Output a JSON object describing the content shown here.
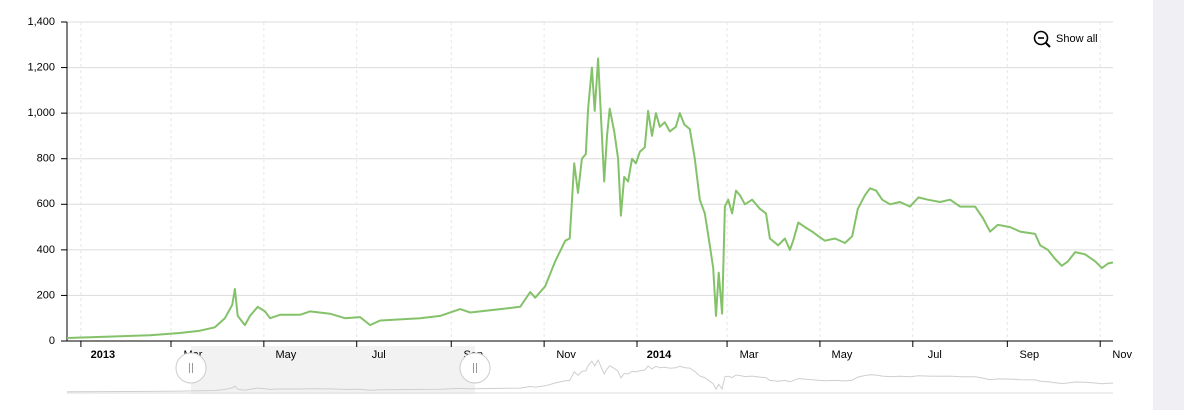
{
  "chart_data": {
    "type": "line",
    "button": "Show all",
    "color": "#84c26a",
    "x": [
      2012.975,
      2013.124,
      2013.178,
      2013.214,
      2013.241,
      2013.259,
      2013.272,
      2013.277,
      2013.282,
      2013.295,
      2013.304,
      2013.318,
      2013.331,
      2013.34,
      2013.358,
      2013.394,
      2013.412,
      2013.448,
      2013.475,
      2013.502,
      2013.52,
      2013.538,
      2013.574,
      2013.61,
      2013.646,
      2013.682,
      2013.7,
      2013.754,
      2013.79,
      2013.808,
      2013.817,
      2013.835,
      2013.853,
      2013.871,
      2013.879,
      2013.887,
      2013.894,
      2013.901,
      2013.908,
      2013.912,
      2013.919,
      2013.924,
      2013.93,
      2013.935,
      2013.941,
      2013.946,
      2013.951,
      2013.959,
      2013.966,
      2013.971,
      2013.977,
      2013.984,
      2013.991,
      2013.998,
      2014.005,
      2014.014,
      2014.02,
      2014.027,
      2014.034,
      2014.041,
      2014.05,
      2014.059,
      2014.07,
      2014.077,
      2014.085,
      2014.095,
      2014.104,
      2014.113,
      2014.122,
      2014.131,
      2014.137,
      2014.142,
      2014.147,
      2014.153,
      2014.158,
      2014.164,
      2014.171,
      2014.178,
      2014.185,
      2014.194,
      2014.207,
      2014.221,
      2014.232,
      2014.239,
      2014.254,
      2014.266,
      2014.275,
      2014.281,
      2014.29,
      2014.302,
      2014.315,
      2014.326,
      2014.338,
      2014.356,
      2014.374,
      2014.387,
      2014.397,
      2014.41,
      2014.419,
      2014.43,
      2014.441,
      2014.455,
      2014.473,
      2014.491,
      2014.506,
      2014.523,
      2014.545,
      2014.563,
      2014.581,
      2014.608,
      2014.622,
      2014.635,
      2014.649,
      2014.671,
      2014.689,
      2014.716,
      2014.725,
      2014.739,
      2014.752,
      2014.764,
      2014.775,
      2014.788,
      2014.806,
      2014.824,
      2014.836,
      2014.847,
      2014.856
    ],
    "values": [
      13,
      25,
      35,
      45,
      60,
      100,
      158,
      228,
      110,
      70,
      110,
      150,
      130,
      100,
      115,
      115,
      130,
      120,
      100,
      105,
      70,
      90,
      95,
      100,
      110,
      140,
      125,
      140,
      150,
      215,
      190,
      240,
      350,
      440,
      450,
      780,
      650,
      800,
      820,
      1020,
      1200,
      1010,
      1240,
      1000,
      700,
      900,
      1020,
      920,
      800,
      550,
      720,
      700,
      800,
      780,
      830,
      850,
      1010,
      900,
      1000,
      940,
      960,
      920,
      940,
      1000,
      950,
      930,
      800,
      620,
      560,
      420,
      320,
      110,
      300,
      120,
      590,
      620,
      560,
      660,
      640,
      600,
      620,
      580,
      560,
      450,
      420,
      450,
      400,
      440,
      520,
      500,
      480,
      460,
      440,
      450,
      430,
      460,
      580,
      640,
      670,
      660,
      620,
      600,
      610,
      590,
      630,
      620,
      610,
      620,
      590,
      590,
      540,
      480,
      510,
      500,
      480,
      470,
      420,
      400,
      360,
      330,
      350,
      390,
      380,
      350,
      320,
      340,
      345
    ],
    "xlim": [
      2012.975,
      2014.856
    ],
    "xticks": [
      {
        "value": 2013,
        "label": "2013"
      },
      {
        "value": 2013.162,
        "label": "Mar"
      },
      {
        "value": 2013.329,
        "label": "May"
      },
      {
        "value": 2013.496,
        "label": "Jul"
      },
      {
        "value": 2013.666,
        "label": "Sep"
      },
      {
        "value": 2013.833,
        "label": "Nov"
      },
      {
        "value": 2014,
        "label": "2014"
      },
      {
        "value": 2014.162,
        "label": "Mar"
      },
      {
        "value": 2014.329,
        "label": "May"
      },
      {
        "value": 2014.496,
        "label": "Jul"
      },
      {
        "value": 2014.666,
        "label": "Sep"
      },
      {
        "value": 2014.833,
        "label": "Nov"
      }
    ],
    "ylim": [
      0,
      1400
    ],
    "yticks": [
      0,
      200,
      400,
      600,
      800,
      {
        "value": 1000,
        "label": "1,000"
      },
      {
        "value": 1200,
        "label": "1,200"
      },
      {
        "value": 1400,
        "label": "1,400"
      }
    ],
    "grid": true
  }
}
